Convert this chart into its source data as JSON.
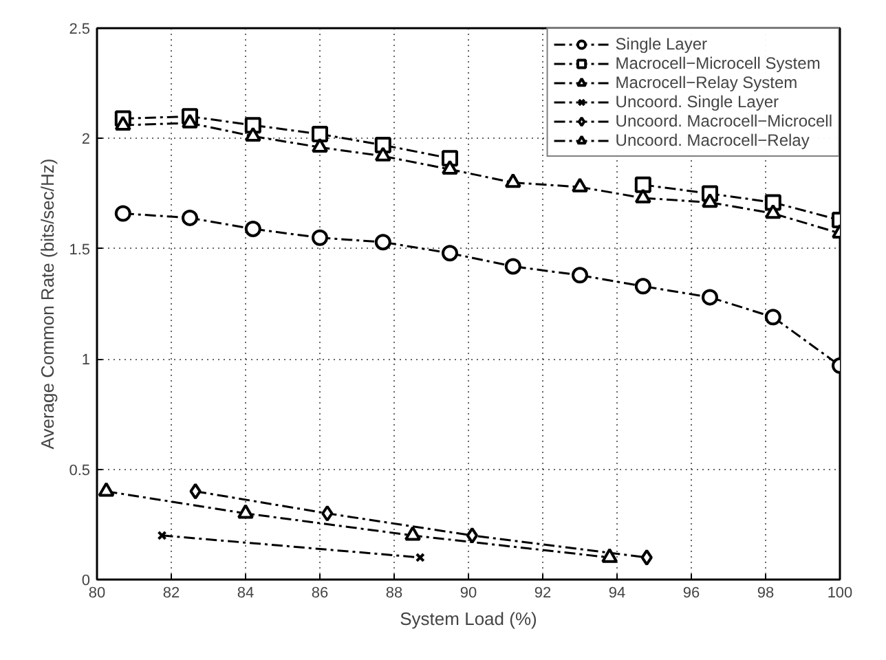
{
  "chart_data": {
    "type": "line",
    "xlabel": "System Load (%)",
    "ylabel": "Average Common Rate (bits/sec/Hz)",
    "xlim": [
      80,
      100
    ],
    "ylim": [
      0,
      2.5
    ],
    "xticks": [
      80,
      82,
      84,
      86,
      88,
      90,
      92,
      94,
      96,
      98,
      100
    ],
    "yticks": [
      0,
      0.5,
      1,
      1.5,
      2,
      2.5
    ],
    "grid": true,
    "legend": "top right",
    "line_style": "dashdot",
    "series": [
      {
        "name": "Single Layer",
        "color": "#000000",
        "marker": "circle",
        "x": [
          80.7,
          82.5,
          84.2,
          86.0,
          87.7,
          89.5,
          91.2,
          93.0,
          94.7,
          96.5,
          98.2,
          100
        ],
        "values": [
          1.66,
          1.64,
          1.59,
          1.55,
          1.53,
          1.48,
          1.42,
          1.38,
          1.33,
          1.28,
          1.19,
          0.97
        ]
      },
      {
        "name": "Macrocell−Microcell System",
        "color": "#000000",
        "marker": "square",
        "x": [
          80.7,
          82.5,
          84.2,
          86.0,
          87.7,
          89.5,
          91.2,
          93.0,
          94.7,
          96.5,
          98.2,
          100
        ],
        "values": [
          2.09,
          2.1,
          2.06,
          2.02,
          1.97,
          1.91,
          null,
          null,
          1.79,
          1.75,
          1.71,
          1.63
        ]
      },
      {
        "name": "Macrocell−Relay System",
        "color": "#000000",
        "marker": "triangle",
        "x": [
          80.7,
          82.5,
          84.2,
          86.0,
          87.7,
          89.5,
          91.2,
          93.0,
          94.7,
          96.5,
          98.2,
          100
        ],
        "values": [
          2.06,
          2.07,
          2.01,
          1.96,
          1.92,
          1.86,
          1.8,
          1.78,
          1.73,
          1.71,
          1.66,
          1.57
        ]
      },
      {
        "name": "Uncoord. Single Layer",
        "color": "#000000",
        "marker": "cross",
        "x": [
          81.75,
          88.7
        ],
        "values": [
          0.2,
          0.1
        ]
      },
      {
        "name": "Uncoord. Macrocell−Microcell",
        "color": "#000000",
        "marker": "diamond",
        "x": [
          82.65,
          86.2,
          90.1,
          94.8
        ],
        "values": [
          0.4,
          0.3,
          0.2,
          0.1
        ]
      },
      {
        "name": "Uncoord. Macrocell−Relay",
        "color": "#000000",
        "marker": "triangle",
        "x": [
          80.25,
          84.0,
          88.5,
          93.8
        ],
        "values": [
          0.4,
          0.3,
          0.2,
          0.1
        ]
      }
    ]
  }
}
